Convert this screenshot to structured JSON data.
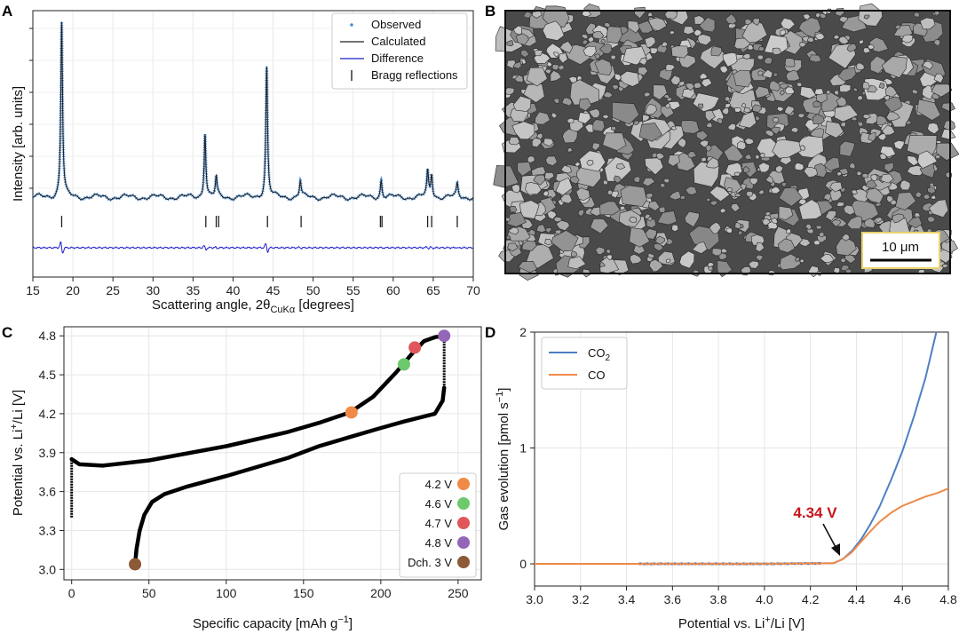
{
  "colors": {
    "observed": "#4a90d9",
    "calculated": "#222222",
    "difference": "#1f1fcc",
    "co2": "#4e7fc4",
    "co": "#ef8a47",
    "highlight": "#c8161d",
    "marker_42": "#ef8a47",
    "marker_46": "#6cc96c",
    "marker_47": "#e0575b",
    "marker_48": "#9466b8",
    "marker_dch": "#8c5a36",
    "scalebar_border": "#e8d36b"
  },
  "chart_data": [
    {
      "panel": "A",
      "type": "line",
      "title": "",
      "xlabel_main": "Scattering angle, 2θ",
      "xlabel_sub": "CuKα",
      "xlabel_suffix": " [degrees]",
      "ylabel": "Intensity [arb. units]",
      "xlim": [
        15,
        70
      ],
      "ylim": [
        0,
        1
      ],
      "xticks": [
        15,
        20,
        25,
        30,
        35,
        40,
        45,
        50,
        55,
        60,
        65,
        70
      ],
      "legend": [
        "Observed",
        "Calculated",
        "Difference",
        "Bragg reflections"
      ],
      "baseline": 0.08,
      "peaks": [
        {
          "pos": 18.6,
          "height": 1.0
        },
        {
          "pos": 36.5,
          "height": 0.37
        },
        {
          "pos": 37.9,
          "height": 0.11
        },
        {
          "pos": 44.2,
          "height": 0.74
        },
        {
          "pos": 48.4,
          "height": 0.09
        },
        {
          "pos": 58.5,
          "height": 0.1
        },
        {
          "pos": 64.3,
          "height": 0.14
        },
        {
          "pos": 64.8,
          "height": 0.13
        },
        {
          "pos": 68.0,
          "height": 0.07
        }
      ],
      "bragg_reflections": [
        18.6,
        36.6,
        37.9,
        38.2,
        44.3,
        48.5,
        58.4,
        58.6,
        64.3,
        64.8,
        68.0
      ]
    },
    {
      "panel": "C",
      "type": "line",
      "title": "",
      "xlabel": "Specific capacity [mAh g",
      "xlabel_sup": "−1",
      "xlabel_end": "]",
      "ylabel_a": "Potential vs. Li",
      "ylabel_sup": "+",
      "ylabel_b": "/Li [V]",
      "xlim": [
        -5,
        265
      ],
      "ylim": [
        2.92,
        4.87
      ],
      "xticks": [
        0,
        50,
        100,
        150,
        200,
        250
      ],
      "yticks": [
        3.0,
        3.3,
        3.6,
        3.9,
        4.2,
        4.5,
        4.8
      ],
      "ytick_labels": [
        "3.0",
        "3.3",
        "3.6",
        "3.9",
        "4.2",
        "4.5",
        "4.8"
      ],
      "charge": {
        "x": [
          0,
          5,
          20,
          50,
          100,
          140,
          160,
          180,
          195,
          210,
          220,
          228,
          235,
          241
        ],
        "y": [
          3.85,
          3.81,
          3.8,
          3.84,
          3.95,
          4.06,
          4.13,
          4.21,
          4.33,
          4.52,
          4.66,
          4.76,
          4.79,
          4.8
        ]
      },
      "hold": {
        "x": [
          241,
          241
        ],
        "y": [
          4.8,
          4.4
        ]
      },
      "discharge": {
        "x": [
          241,
          240,
          235,
          225,
          215,
          200,
          180,
          160,
          140,
          100,
          75,
          60,
          52,
          47,
          44,
          42,
          41
        ],
        "y": [
          4.4,
          4.3,
          4.2,
          4.17,
          4.14,
          4.09,
          4.02,
          3.95,
          3.86,
          3.72,
          3.64,
          3.58,
          3.52,
          3.42,
          3.3,
          3.16,
          3.04
        ]
      },
      "ocv": {
        "x": [
          0,
          0
        ],
        "y": [
          3.4,
          3.86
        ]
      },
      "markers": [
        {
          "label": "4.2 V",
          "x": 181,
          "y": 4.21,
          "color": "#ef8a47"
        },
        {
          "label": "4.6 V",
          "x": 215,
          "y": 4.58,
          "color": "#6cc96c"
        },
        {
          "label": "4.7 V",
          "x": 222,
          "y": 4.71,
          "color": "#e0575b"
        },
        {
          "label": "4.8 V",
          "x": 241,
          "y": 4.8,
          "color": "#9466b8"
        },
        {
          "label": "Dch. 3 V",
          "x": 41,
          "y": 3.04,
          "color": "#8c5a36"
        }
      ]
    },
    {
      "panel": "D",
      "type": "line",
      "title": "",
      "xlabel_a": "Potential vs. Li",
      "xlabel_sup": "+",
      "xlabel_b": "/Li [V]",
      "ylabel_a": "Gas evolution [pmol s",
      "ylabel_sup": "−1",
      "ylabel_b": "]",
      "xlim": [
        3.0,
        4.8
      ],
      "ylim": [
        -0.2,
        2.0
      ],
      "xticks": [
        3.0,
        3.2,
        3.4,
        3.6,
        3.8,
        4.0,
        4.2,
        4.4,
        4.6,
        4.8
      ],
      "xtick_labels": [
        "3.0",
        "3.2",
        "3.4",
        "3.6",
        "3.8",
        "4.0",
        "4.2",
        "4.4",
        "4.6",
        "4.8"
      ],
      "yticks": [
        0,
        1,
        2
      ],
      "series": [
        {
          "name": "CO2",
          "name_base": "CO",
          "name_sub": "2",
          "x": [
            3.0,
            3.5,
            4.0,
            4.3,
            4.34,
            4.38,
            4.42,
            4.46,
            4.5,
            4.55,
            4.6,
            4.65,
            4.7,
            4.75
          ],
          "y": [
            0,
            0,
            0,
            0.005,
            0.04,
            0.11,
            0.21,
            0.34,
            0.49,
            0.72,
            0.97,
            1.27,
            1.6,
            2.02
          ]
        },
        {
          "name": "CO",
          "x": [
            3.0,
            3.5,
            4.0,
            4.3,
            4.34,
            4.38,
            4.42,
            4.46,
            4.5,
            4.55,
            4.6,
            4.65,
            4.7,
            4.75,
            4.8
          ],
          "y": [
            0,
            0,
            0,
            0.005,
            0.04,
            0.1,
            0.19,
            0.28,
            0.36,
            0.44,
            0.5,
            0.54,
            0.58,
            0.61,
            0.65
          ]
        }
      ],
      "annotation": {
        "text": "4.34 V",
        "x": 4.34,
        "y": 0.0
      }
    }
  ],
  "sem": {
    "panel": "B",
    "scalebar_label": "10 μm"
  },
  "panel_labels": {
    "a": "A",
    "b": "B",
    "c": "C",
    "d": "D"
  }
}
